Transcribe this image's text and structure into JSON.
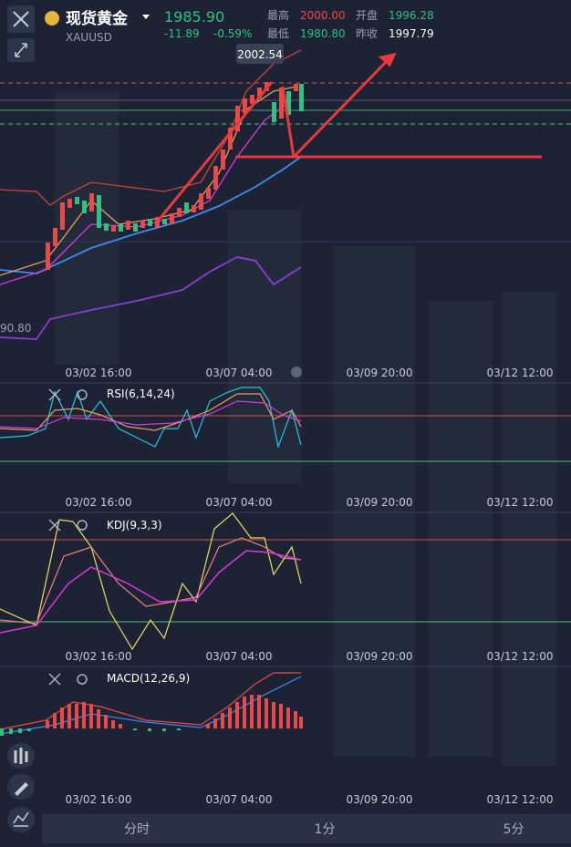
{
  "header": {
    "name": "现货黄金",
    "symbol": "XAUUSD",
    "price": "1985.90",
    "change": "-11.89",
    "change_pct": "-0.59%",
    "stats": [
      {
        "label": "最高",
        "value": "2000.00"
      },
      {
        "label": "开盘",
        "value": "1996.28"
      },
      {
        "label": "最低",
        "value": "1980.80"
      },
      {
        "label": "昨收",
        "value": "1997.79"
      }
    ]
  },
  "main": {
    "price_tag": "2002.54",
    "left_label": "90.80",
    "time_labels": [
      "03/02 16:00",
      "03/07 04:00",
      "03/09 20:00",
      "03/12 12:00"
    ]
  },
  "panels": [
    {
      "name": "RSI(6,14,24)",
      "time_labels": [
        "03/02 16:00",
        "03/07 04:00",
        "03/09 20:00",
        "03/12 12:00"
      ]
    },
    {
      "name": "KDJ(9,3,3)",
      "time_labels": [
        "03/02 16:00",
        "03/07 04:00",
        "03/09 20:00",
        "03/12 12:00"
      ]
    },
    {
      "name": "MACD(12,26,9)",
      "time_labels": [
        "03/02 16:00",
        "03/07 04:00",
        "03/09 20:00",
        "03/12 12:00"
      ]
    }
  ],
  "tabs": [
    "分时",
    "1分",
    "5分"
  ]
}
